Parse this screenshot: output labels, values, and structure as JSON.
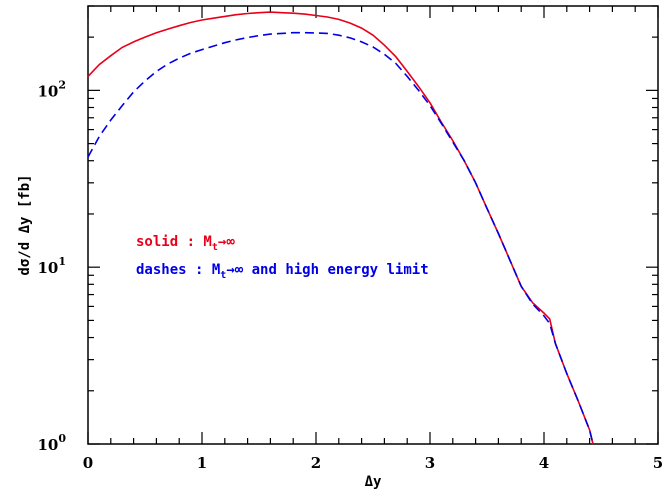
{
  "chart_data": {
    "type": "line",
    "title": "",
    "xlabel": "Δy",
    "ylabel": "dσ/d Δy [fb]",
    "xlim": [
      0,
      5
    ],
    "ylim": [
      1,
      300
    ],
    "yscale": "log",
    "grid": false,
    "x_ticks": [
      "0",
      "1",
      "2",
      "3",
      "4",
      "5"
    ],
    "y_tick_labels": [
      {
        "base": "10",
        "exp": "0",
        "value": 1
      },
      {
        "base": "10",
        "exp": "1",
        "value": 10
      },
      {
        "base": "10",
        "exp": "2",
        "value": 100
      }
    ],
    "legend": [
      {
        "series": "solid",
        "text": "solid  : M",
        "sub": "t",
        "suffix": "→∞",
        "color": "#e8001a"
      },
      {
        "series": "dashes",
        "text": "dashes : M",
        "sub": "t",
        "suffix": "→∞ and high energy limit",
        "color": "#0000e6"
      }
    ],
    "series": [
      {
        "style": "solid",
        "color": "#e8001a",
        "x": [
          0,
          0.1,
          0.2,
          0.3,
          0.4,
          0.5,
          0.6,
          0.7,
          0.8,
          0.9,
          1.0,
          1.1,
          1.2,
          1.3,
          1.4,
          1.5,
          1.6,
          1.7,
          1.8,
          1.9,
          2.0,
          2.1,
          2.2,
          2.3,
          2.4,
          2.5,
          2.6,
          2.7,
          2.8,
          2.9,
          3.0,
          3.1,
          3.2,
          3.3,
          3.4,
          3.5,
          3.6,
          3.7,
          3.8,
          3.9,
          4.0,
          4.05,
          4.1,
          4.2,
          4.3,
          4.4,
          4.43
        ],
        "y": [
          120,
          140,
          157,
          175,
          188,
          200,
          212,
          222,
          232,
          242,
          250,
          256,
          262,
          268,
          272,
          275,
          277,
          275,
          273,
          270,
          265,
          260,
          252,
          240,
          225,
          205,
          180,
          155,
          128,
          105,
          85,
          66,
          52,
          40,
          30,
          21.5,
          15.5,
          11,
          7.8,
          6.3,
          5.5,
          5.1,
          3.7,
          2.5,
          1.75,
          1.2,
          1.0
        ]
      },
      {
        "style": "dashed",
        "color": "#0000e6",
        "x": [
          0,
          0.1,
          0.2,
          0.3,
          0.4,
          0.5,
          0.6,
          0.7,
          0.8,
          0.9,
          1.0,
          1.1,
          1.2,
          1.3,
          1.4,
          1.5,
          1.6,
          1.7,
          1.8,
          1.9,
          2.0,
          2.1,
          2.2,
          2.3,
          2.4,
          2.5,
          2.6,
          2.7,
          2.8,
          2.9,
          3.0,
          3.1,
          3.2,
          3.3,
          3.4,
          3.5,
          3.6,
          3.7,
          3.8,
          3.9,
          4.0,
          4.05,
          4.1,
          4.2,
          4.3,
          4.4,
          4.43
        ],
        "y": [
          42,
          55,
          68,
          82,
          98,
          113,
          128,
          141,
          152,
          162,
          170,
          178,
          186,
          193,
          199,
          204,
          208,
          210,
          212,
          212,
          211,
          210,
          205,
          198,
          188,
          176,
          160,
          142,
          120,
          100,
          82,
          65,
          51,
          40,
          30,
          21.5,
          15.5,
          11,
          7.8,
          6.2,
          5.3,
          4.8,
          3.7,
          2.5,
          1.75,
          1.2,
          1.0
        ]
      }
    ]
  }
}
